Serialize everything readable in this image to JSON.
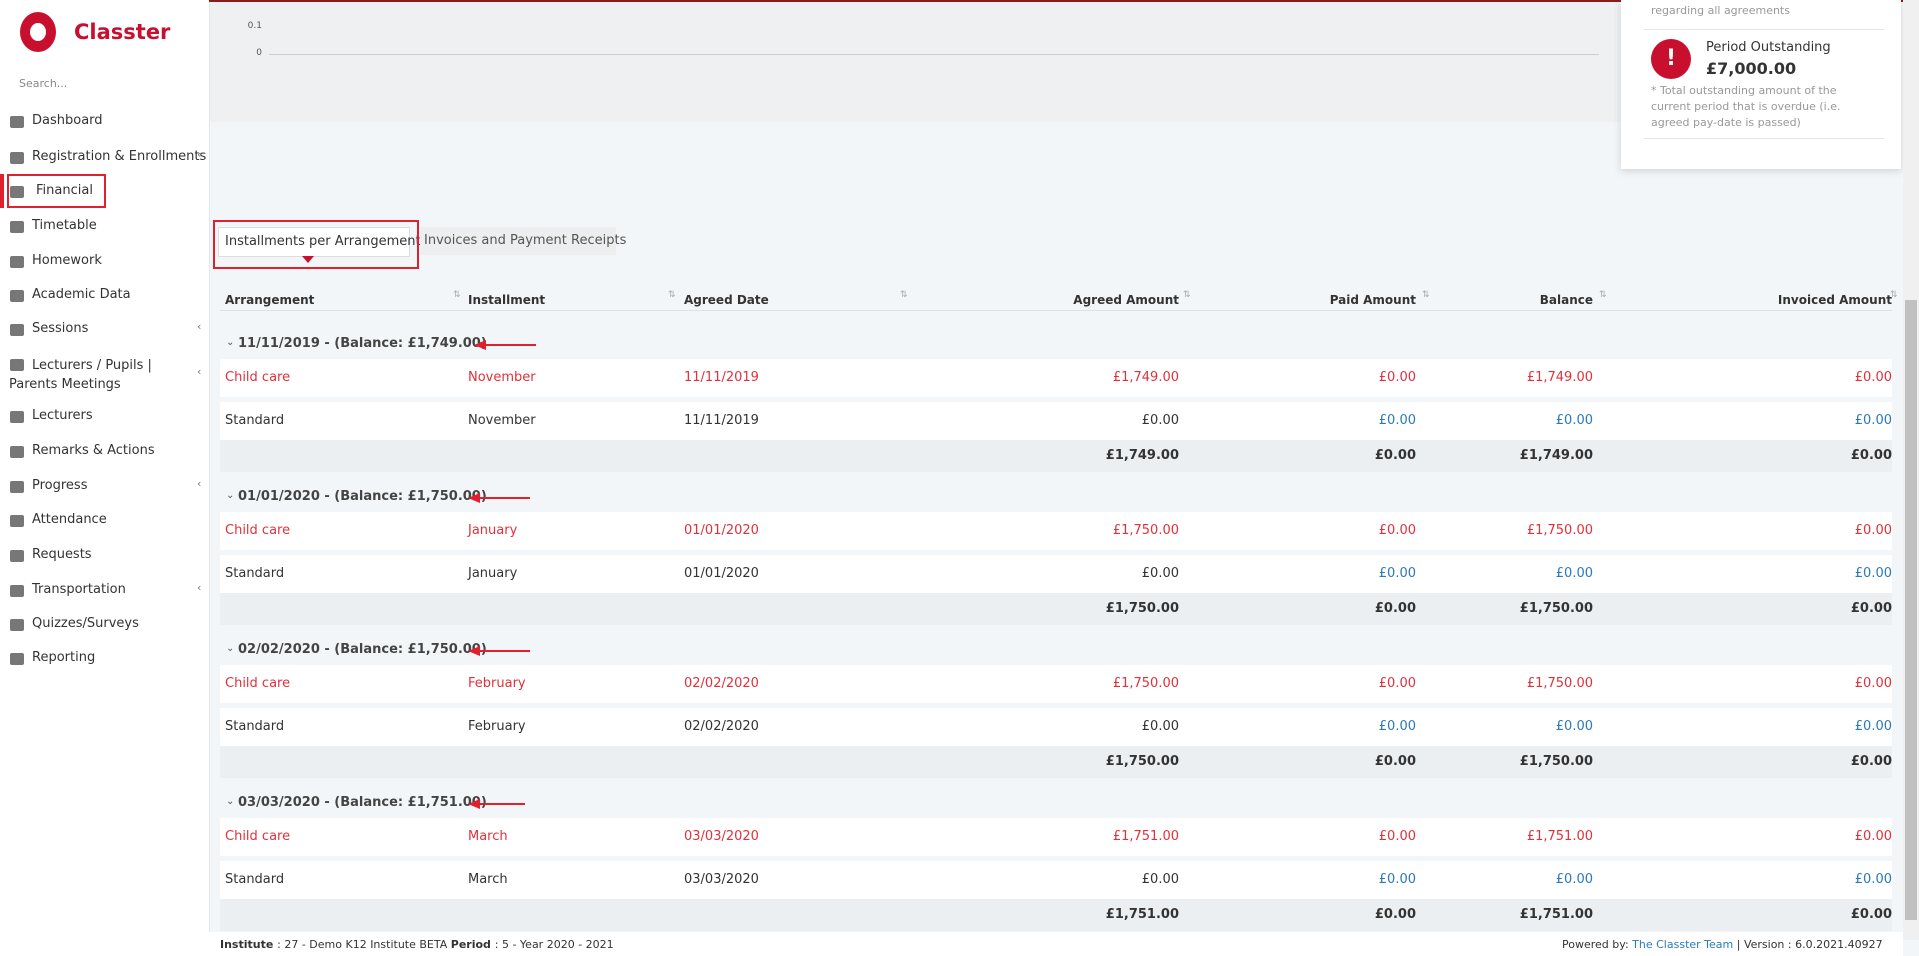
{
  "brand": "Classter",
  "search_placeholder": "Search...",
  "menu": [
    "Dashboard",
    "Registration & Enrollments",
    "Financial",
    "Timetable",
    "Homework",
    "Academic Data",
    "Sessions",
    "Lecturers / Pupils | Parents Meetings",
    "Lecturers",
    "Remarks & Actions",
    "Progress",
    "Attendance",
    "Requests",
    "Transportation",
    "Quizzes/Surveys",
    "Reporting"
  ],
  "chart_ticks": [
    "0.1",
    "0"
  ],
  "card": {
    "note_top": "regarding all agreements",
    "title": "Period Outstanding",
    "amount": "£7,000.00",
    "note": "* Total outstanding amount of the current period that is overdue (i.e. agreed pay-date is passed)"
  },
  "tabs": [
    "Installments per Arrangement",
    "Invoices and Payment Receipts"
  ],
  "table": {
    "headers": [
      "Arrangement",
      "Installment",
      "Agreed Date",
      "Agreed Amount",
      "Paid Amount",
      "Balance",
      "Invoiced Amount"
    ],
    "groups": [
      {
        "title": "11/11/2019 - (Balance: £1,749.00)",
        "rows": [
          {
            "color": "#e0313b",
            "cells": [
              "Child care",
              "November",
              "11/11/2019",
              "£1,749.00",
              "£0.00",
              "£1,749.00",
              "£0.00"
            ]
          },
          {
            "color": "#2a7ab9",
            "cells": [
              "Standard",
              "November",
              "11/11/2019",
              "£0.00",
              "£0.00",
              "£0.00",
              "£0.00"
            ]
          }
        ],
        "total": [
          "£1,749.00",
          "£0.00",
          "£1,749.00",
          "£0.00"
        ]
      },
      {
        "title": "01/01/2020 - (Balance: £1,750.00)",
        "rows": [
          {
            "color": "#e0313b",
            "cells": [
              "Child care",
              "January",
              "01/01/2020",
              "£1,750.00",
              "£0.00",
              "£1,750.00",
              "£0.00"
            ]
          },
          {
            "color": "#2a7ab9",
            "cells": [
              "Standard",
              "January",
              "01/01/2020",
              "£0.00",
              "£0.00",
              "£0.00",
              "£0.00"
            ]
          }
        ],
        "total": [
          "£1,750.00",
          "£0.00",
          "£1,750.00",
          "£0.00"
        ]
      },
      {
        "title": "02/02/2020 - (Balance: £1,750.00)",
        "rows": [
          {
            "color": "#e0313b",
            "cells": [
              "Child care",
              "February",
              "02/02/2020",
              "£1,750.00",
              "£0.00",
              "£1,750.00",
              "£0.00"
            ]
          },
          {
            "color": "#2a7ab9",
            "cells": [
              "Standard",
              "February",
              "02/02/2020",
              "£0.00",
              "£0.00",
              "£0.00",
              "£0.00"
            ]
          }
        ],
        "total": [
          "£1,750.00",
          "£0.00",
          "£1,750.00",
          "£0.00"
        ]
      },
      {
        "title": "03/03/2020 - (Balance: £1,751.00)",
        "rows": [
          {
            "color": "#e0313b",
            "cells": [
              "Child care",
              "March",
              "03/03/2020",
              "£1,751.00",
              "£0.00",
              "£1,751.00",
              "£0.00"
            ]
          },
          {
            "color": "#2a7ab9",
            "cells": [
              "Standard",
              "March",
              "03/03/2020",
              "£0.00",
              "£0.00",
              "£0.00",
              "£0.00"
            ]
          }
        ],
        "total": [
          "£1,751.00",
          "£0.00",
          "£1,751.00",
          "£0.00"
        ]
      }
    ]
  },
  "footer": {
    "institute_label": "Institute",
    "institute_value": ": 27 - Demo K12 Institute BETA",
    "period_label": "Period",
    "period_value": ": 5 - Year 2020 - 2021",
    "powered": "Powered by:",
    "team": "The Classter Team",
    "version": "| Version : 6.0.2021.40927"
  }
}
